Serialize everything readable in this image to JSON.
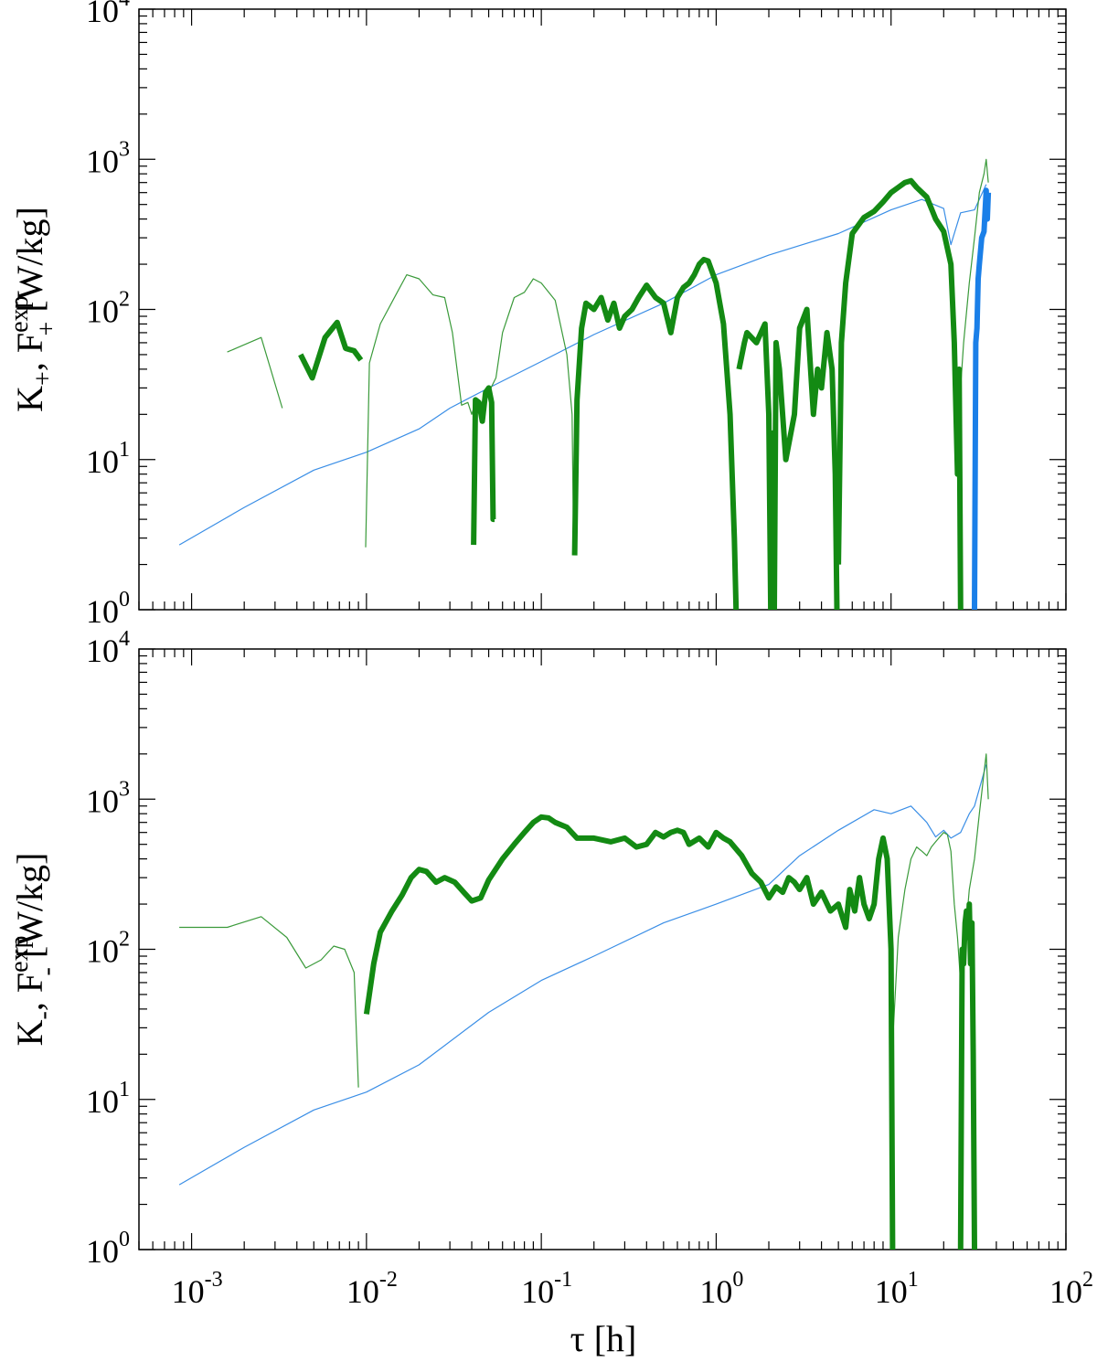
{
  "chart_data": [
    {
      "type": "line",
      "panel": "top",
      "ylabel": {
        "main": "K",
        "sub": "+",
        "sep": ", F",
        "sup": "exp",
        "sub2": "+",
        "unit": " [W/kg]"
      },
      "xlabel": "",
      "x_scale": "log",
      "y_scale": "log",
      "xlim": [
        0.0005,
        100
      ],
      "ylim": [
        1,
        10000
      ],
      "x_ticks": [
        {
          "base": "10",
          "exp": "-3",
          "value": 0.001
        },
        {
          "base": "10",
          "exp": "-2",
          "value": 0.01
        },
        {
          "base": "10",
          "exp": "-1",
          "value": 0.1
        },
        {
          "base": "10",
          "exp": "0",
          "value": 1
        },
        {
          "base": "10",
          "exp": "1",
          "value": 10
        },
        {
          "base": "10",
          "exp": "2",
          "value": 100
        }
      ],
      "y_ticks": [
        {
          "base": "10",
          "exp": "0",
          "value": 1
        },
        {
          "base": "10",
          "exp": "1",
          "value": 10
        },
        {
          "base": "10",
          "exp": "2",
          "value": 100
        },
        {
          "base": "10",
          "exp": "3",
          "value": 1000
        },
        {
          "base": "10",
          "exp": "4",
          "value": 10000
        }
      ],
      "show_x_tick_labels": false,
      "series": [
        {
          "style": "thin-blue",
          "color": "#3a8ee6",
          "width": 1.2,
          "x": [
            0.00085,
            0.002,
            0.005,
            0.01,
            0.02,
            0.03,
            0.05,
            0.1,
            0.2,
            0.5,
            1,
            2,
            5,
            10,
            15,
            20,
            22,
            25,
            30,
            35
          ],
          "y": [
            2.7,
            4.8,
            8.5,
            11.2,
            16,
            22,
            30,
            45,
            68,
            110,
            170,
            230,
            320,
            460,
            540,
            470,
            270,
            440,
            460,
            680
          ]
        },
        {
          "style": "thin-green",
          "color": "#3a9a3a",
          "width": 1.2,
          "x": [
            0.0016,
            0.0025,
            0.0033
          ],
          "y": [
            52,
            65,
            22
          ]
        },
        {
          "style": "thin-green",
          "color": "#3a9a3a",
          "width": 1.2,
          "x": [
            0.0099,
            0.0104,
            0.012,
            0.015,
            0.017,
            0.02,
            0.024,
            0.028,
            0.031,
            0.035,
            0.038,
            0.04,
            0.042,
            0.045,
            0.05,
            0.055,
            0.06,
            0.07,
            0.08,
            0.09,
            0.1,
            0.12,
            0.14,
            0.15,
            0.153
          ],
          "y": [
            2.6,
            44,
            80,
            130,
            170,
            160,
            125,
            120,
            70,
            23,
            24,
            20,
            24,
            23,
            28,
            35,
            70,
            120,
            130,
            160,
            150,
            115,
            50,
            20,
            2.4
          ],
          "extra": []
        },
        {
          "style": "thin-green",
          "color": "#3a9a3a",
          "width": 1.2,
          "x": [
            24,
            26,
            28,
            30,
            32,
            34,
            35,
            36
          ],
          "y": [
            15,
            60,
            150,
            300,
            600,
            800,
            1000,
            700
          ]
        },
        {
          "style": "thick-green",
          "color": "#138a13",
          "width": 6,
          "x": [
            0.0042,
            0.0049,
            0.0058,
            0.0068,
            0.0076,
            0.0085,
            0.0093
          ],
          "y": [
            50,
            35,
            65,
            82,
            55,
            53,
            46
          ]
        },
        {
          "style": "thick-green",
          "color": "#138a13",
          "width": 6,
          "x": [
            0.041,
            0.042,
            0.044,
            0.046,
            0.048,
            0.05,
            0.052,
            0.053,
            0.054
          ],
          "y": [
            2.7,
            25,
            24,
            18,
            28,
            30,
            24,
            4,
            4
          ]
        },
        {
          "style": "thick-green",
          "color": "#138a13",
          "width": 6,
          "x": [
            0.155,
            0.16,
            0.17,
            0.18,
            0.2,
            0.22,
            0.24,
            0.26,
            0.28,
            0.3,
            0.33,
            0.36,
            0.4,
            0.45,
            0.5,
            0.55,
            0.6,
            0.65,
            0.7,
            0.75,
            0.8,
            0.85,
            0.9,
            1.0,
            1.1,
            1.2,
            1.27,
            1.3
          ],
          "y": [
            2.3,
            25,
            75,
            110,
            100,
            120,
            85,
            110,
            75,
            90,
            100,
            120,
            145,
            120,
            110,
            70,
            120,
            140,
            150,
            170,
            200,
            215,
            210,
            150,
            80,
            20,
            3,
            1
          ]
        },
        {
          "style": "thick-green",
          "color": "#138a13",
          "width": 6,
          "x": [
            1.35,
            1.45,
            1.5,
            1.7,
            1.9,
            2.0,
            2.05,
            2.1,
            2.15,
            2.2,
            2.3,
            2.5,
            2.8,
            3.0,
            3.3,
            3.6,
            3.8,
            4.0,
            4.3,
            4.6,
            4.8,
            4.9
          ],
          "y": [
            40,
            60,
            70,
            60,
            80,
            20,
            1,
            15,
            1,
            60,
            40,
            10,
            20,
            75,
            100,
            20,
            40,
            30,
            70,
            40,
            8,
            1
          ]
        },
        {
          "style": "thick-green",
          "color": "#138a13",
          "width": 6,
          "x": [
            5.0,
            5.2,
            5.5,
            6,
            7,
            8,
            9,
            10,
            11,
            12,
            13,
            14,
            16,
            18,
            20,
            22,
            23,
            24,
            24.5,
            25
          ],
          "y": [
            2,
            60,
            150,
            320,
            410,
            450,
            520,
            600,
            650,
            700,
            720,
            650,
            560,
            400,
            330,
            200,
            60,
            8,
            40,
            1
          ]
        },
        {
          "style": "thick-blue",
          "color": "#1a7fe8",
          "width": 6,
          "x": [
            30,
            30.5,
            31,
            31.5,
            32,
            33,
            34,
            35,
            35.5,
            36
          ],
          "y": [
            1,
            60,
            75,
            160,
            200,
            300,
            330,
            620,
            400,
            600
          ]
        }
      ]
    },
    {
      "type": "line",
      "panel": "bottom",
      "ylabel": {
        "main": "K",
        "sub": "-",
        "sep": ", F",
        "sup": "exp",
        "sub2": "-",
        "unit": " [W/kg]"
      },
      "xlabel": "τ [h]",
      "x_scale": "log",
      "y_scale": "log",
      "xlim": [
        0.0005,
        100
      ],
      "ylim": [
        1,
        10000
      ],
      "x_ticks": [
        {
          "base": "10",
          "exp": "-3",
          "value": 0.001
        },
        {
          "base": "10",
          "exp": "-2",
          "value": 0.01
        },
        {
          "base": "10",
          "exp": "-1",
          "value": 0.1
        },
        {
          "base": "10",
          "exp": "0",
          "value": 1
        },
        {
          "base": "10",
          "exp": "1",
          "value": 10
        },
        {
          "base": "10",
          "exp": "2",
          "value": 100
        }
      ],
      "y_ticks": [
        {
          "base": "10",
          "exp": "0",
          "value": 1
        },
        {
          "base": "10",
          "exp": "1",
          "value": 10
        },
        {
          "base": "10",
          "exp": "2",
          "value": 100
        },
        {
          "base": "10",
          "exp": "3",
          "value": 1000
        },
        {
          "base": "10",
          "exp": "4",
          "value": 10000
        }
      ],
      "show_x_tick_labels": true,
      "series": [
        {
          "style": "thin-blue",
          "color": "#3a8ee6",
          "width": 1.2,
          "x": [
            0.00085,
            0.002,
            0.005,
            0.01,
            0.02,
            0.05,
            0.1,
            0.2,
            0.5,
            1,
            2,
            3,
            5,
            8,
            10,
            13,
            16,
            18,
            20,
            22,
            25,
            28,
            30,
            35
          ],
          "y": [
            2.7,
            4.8,
            8.5,
            11.2,
            17,
            38,
            62,
            90,
            150,
            200,
            270,
            420,
            620,
            850,
            800,
            900,
            700,
            560,
            620,
            550,
            600,
            800,
            900,
            1700
          ]
        },
        {
          "style": "thin-green",
          "color": "#3a9a3a",
          "width": 1.2,
          "x": [
            0.00085,
            0.0016,
            0.0025,
            0.0035,
            0.0045,
            0.0055,
            0.0065,
            0.0075,
            0.0085,
            0.009
          ],
          "y": [
            140,
            140,
            165,
            120,
            75,
            85,
            105,
            100,
            70,
            12
          ]
        },
        {
          "style": "thin-green",
          "color": "#3a9a3a",
          "width": 1.2,
          "x": [
            10,
            11,
            12,
            13,
            14,
            15,
            16,
            17,
            18,
            19,
            20,
            21,
            22,
            23,
            24,
            25,
            26,
            27,
            28,
            30,
            32,
            34,
            35,
            36
          ],
          "y": [
            15,
            120,
            250,
            400,
            480,
            450,
            420,
            480,
            520,
            560,
            600,
            580,
            450,
            200,
            120,
            60,
            100,
            150,
            250,
            400,
            800,
            1500,
            2000,
            1000
          ]
        },
        {
          "style": "thick-green",
          "color": "#138a13",
          "width": 6,
          "x": [
            0.01,
            0.011,
            0.012,
            0.014,
            0.016,
            0.018,
            0.02,
            0.022,
            0.025,
            0.028,
            0.032,
            0.036,
            0.04,
            0.045,
            0.05,
            0.06,
            0.07,
            0.08,
            0.09,
            0.1,
            0.11,
            0.12,
            0.14,
            0.16,
            0.2,
            0.25,
            0.3,
            0.35,
            0.4,
            0.45,
            0.5,
            0.55,
            0.6,
            0.65,
            0.7,
            0.8,
            0.9,
            1.0,
            1.1,
            1.2,
            1.4,
            1.6,
            1.8,
            2.0,
            2.2,
            2.4,
            2.6,
            2.8,
            3.0,
            3.3,
            3.6,
            4.0,
            4.5,
            5.0,
            5.5,
            5.8,
            6.2,
            6.6,
            7.0,
            7.5,
            8,
            8.5,
            9,
            9.5,
            10,
            10.2
          ],
          "y": [
            37,
            80,
            130,
            180,
            230,
            300,
            340,
            330,
            280,
            300,
            280,
            240,
            210,
            220,
            290,
            400,
            500,
            600,
            700,
            760,
            750,
            700,
            650,
            550,
            550,
            520,
            550,
            480,
            500,
            600,
            560,
            600,
            620,
            600,
            500,
            550,
            480,
            600,
            550,
            520,
            420,
            320,
            280,
            220,
            260,
            240,
            300,
            280,
            250,
            300,
            200,
            240,
            180,
            200,
            140,
            250,
            180,
            300,
            200,
            160,
            200,
            400,
            550,
            400,
            100,
            1
          ]
        },
        {
          "style": "thick-green",
          "color": "#138a13",
          "width": 6,
          "x": [
            25,
            25.5,
            26,
            26.5,
            27,
            27.5,
            28,
            28.5,
            29,
            29.5,
            30
          ],
          "y": [
            1,
            100,
            80,
            150,
            180,
            120,
            200,
            80,
            150,
            20,
            1
          ]
        }
      ]
    }
  ]
}
